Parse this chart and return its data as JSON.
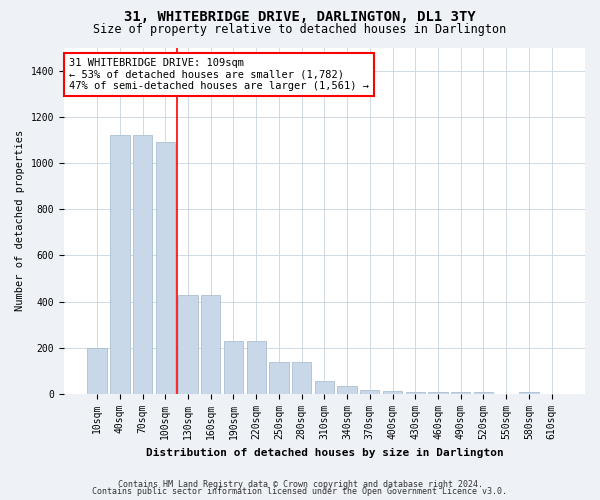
{
  "title": "31, WHITEBRIDGE DRIVE, DARLINGTON, DL1 3TY",
  "subtitle": "Size of property relative to detached houses in Darlington",
  "xlabel": "Distribution of detached houses by size in Darlington",
  "ylabel": "Number of detached properties",
  "bar_color": "#c8d8e8",
  "bar_edgecolor": "#a0b8cc",
  "categories": [
    "10sqm",
    "40sqm",
    "70sqm",
    "100sqm",
    "130sqm",
    "160sqm",
    "190sqm",
    "220sqm",
    "250sqm",
    "280sqm",
    "310sqm",
    "340sqm",
    "370sqm",
    "400sqm",
    "430sqm",
    "460sqm",
    "490sqm",
    "520sqm",
    "550sqm",
    "580sqm",
    "610sqm"
  ],
  "values": [
    200,
    1120,
    1120,
    1090,
    430,
    430,
    230,
    230,
    140,
    140,
    55,
    35,
    20,
    15,
    10,
    10,
    8,
    8,
    0,
    10,
    0
  ],
  "ylim": [
    0,
    1500
  ],
  "yticks": [
    0,
    200,
    400,
    600,
    800,
    1000,
    1200,
    1400
  ],
  "vline_x": 3.5,
  "annotation_text": "31 WHITEBRIDGE DRIVE: 109sqm\n← 53% of detached houses are smaller (1,782)\n47% of semi-detached houses are larger (1,561) →",
  "annotation_box_color": "white",
  "annotation_box_edgecolor": "red",
  "vline_color": "red",
  "footer1": "Contains HM Land Registry data © Crown copyright and database right 2024.",
  "footer2": "Contains public sector information licensed under the Open Government Licence v3.0.",
  "background_color": "#eef2f7",
  "plot_bg_color": "white",
  "grid_color": "#c8d4e0",
  "title_fontsize": 10,
  "subtitle_fontsize": 8.5,
  "ylabel_fontsize": 7.5,
  "xlabel_fontsize": 8,
  "tick_fontsize": 7,
  "footer_fontsize": 6,
  "annot_fontsize": 7.5
}
